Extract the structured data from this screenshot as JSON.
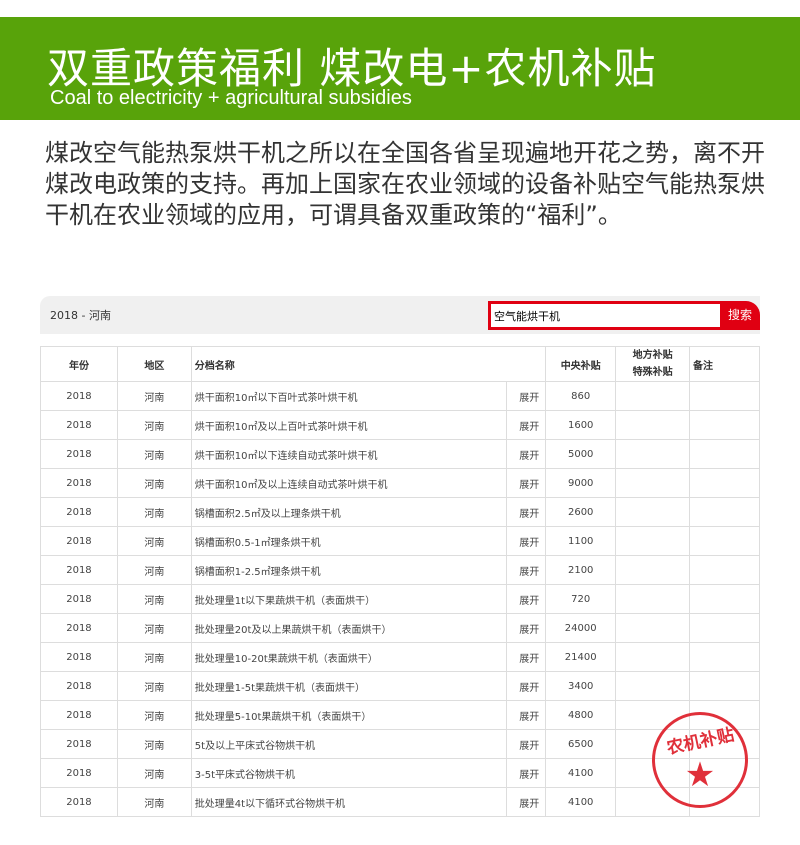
{
  "banner": {
    "title": "双重政策福利  煤改电+农机补贴",
    "subtitle": "Coal to electricity + agricultural subsidies"
  },
  "intro": "煤改空气能热泵烘干机之所以在全国各省呈现遍地开花之势，离不开煤改电政策的支持。再加上国家在农业领域的设备补贴空气能热泵烘干机在农业领域的应用，可谓具备双重政策的“福利”。",
  "panel": {
    "location": "2018 - 河南",
    "search_value": "空气能烘干机",
    "search_button": "搜索"
  },
  "table": {
    "headers": {
      "year": "年份",
      "region": "地区",
      "name": "分档名称",
      "central": "中央补贴",
      "local1": "地方补贴",
      "local2": "特殊补贴",
      "note": "备注"
    },
    "expand_label": "展开",
    "rows": [
      {
        "year": "2018",
        "region": "河南",
        "name": "烘干面积10㎡以下百叶式茶叶烘干机",
        "central": "860"
      },
      {
        "year": "2018",
        "region": "河南",
        "name": "烘干面积10㎡及以上百叶式茶叶烘干机",
        "central": "1600"
      },
      {
        "year": "2018",
        "region": "河南",
        "name": "烘干面积10㎡以下连续自动式茶叶烘干机",
        "central": "5000"
      },
      {
        "year": "2018",
        "region": "河南",
        "name": "烘干面积10㎡及以上连续自动式茶叶烘干机",
        "central": "9000"
      },
      {
        "year": "2018",
        "region": "河南",
        "name": "锅槽面积2.5㎡及以上理条烘干机",
        "central": "2600"
      },
      {
        "year": "2018",
        "region": "河南",
        "name": "锅槽面积0.5-1㎡理条烘干机",
        "central": "1100"
      },
      {
        "year": "2018",
        "region": "河南",
        "name": "锅槽面积1-2.5㎡理条烘干机",
        "central": "2100"
      },
      {
        "year": "2018",
        "region": "河南",
        "name": "批处理量1t以下果蔬烘干机（表面烘干）",
        "central": "720"
      },
      {
        "year": "2018",
        "region": "河南",
        "name": "批处理量20t及以上果蔬烘干机（表面烘干）",
        "central": "24000"
      },
      {
        "year": "2018",
        "region": "河南",
        "name": "批处理量10-20t果蔬烘干机（表面烘干）",
        "central": "21400"
      },
      {
        "year": "2018",
        "region": "河南",
        "name": "批处理量1-5t果蔬烘干机（表面烘干）",
        "central": "3400"
      },
      {
        "year": "2018",
        "region": "河南",
        "name": "批处理量5-10t果蔬烘干机（表面烘干）",
        "central": "4800"
      },
      {
        "year": "2018",
        "region": "河南",
        "name": "5t及以上平床式谷物烘干机",
        "central": "6500"
      },
      {
        "year": "2018",
        "region": "河南",
        "name": "3-5t平床式谷物烘干机",
        "central": "4100"
      },
      {
        "year": "2018",
        "region": "河南",
        "name": "批处理量4t以下循环式谷物烘干机",
        "central": "4100"
      }
    ]
  },
  "stamp": {
    "text": "农机补贴"
  },
  "colors": {
    "banner": "#58a30a",
    "accent": "#e00012"
  }
}
